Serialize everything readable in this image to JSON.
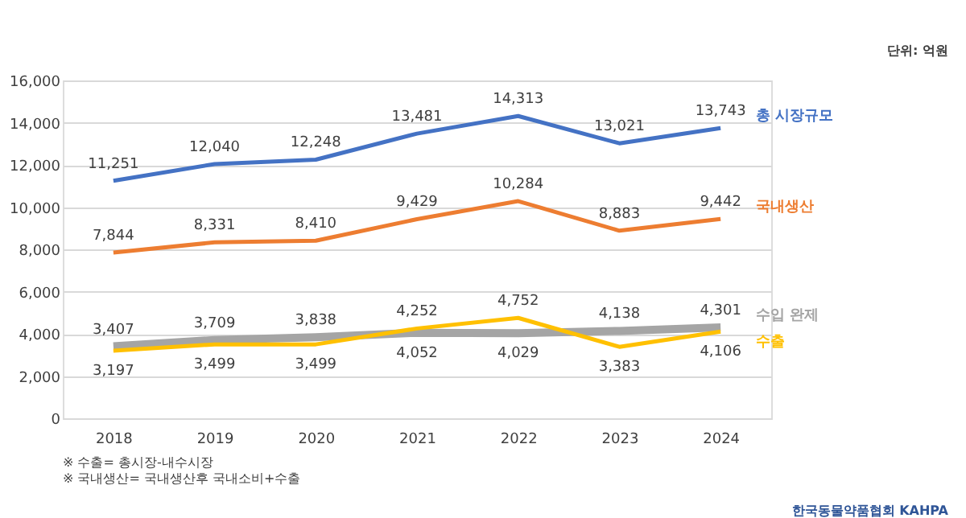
{
  "chart_data": {
    "type": "line",
    "categories": [
      "2018",
      "2019",
      "2020",
      "2021",
      "2022",
      "2023",
      "2024"
    ],
    "series": [
      {
        "name": "총 시장규모",
        "color": "#4472c4",
        "values": [
          11251,
          12040,
          12248,
          13481,
          14313,
          13021,
          13743
        ],
        "value_labels": [
          "11,251",
          "12,040",
          "12,248",
          "13,481",
          "14,313",
          "13,021",
          "13,743"
        ]
      },
      {
        "name": "국내생산",
        "color": "#ed7d31",
        "values": [
          7844,
          8331,
          8410,
          9429,
          10284,
          8883,
          9442
        ],
        "value_labels": [
          "7,844",
          "8,331",
          "8,410",
          "9,429",
          "10,284",
          "8,883",
          "9,442"
        ]
      },
      {
        "name": "수입 완제",
        "color": "#a5a5a5",
        "values": [
          3407,
          3709,
          3838,
          4052,
          4029,
          4138,
          4301
        ],
        "value_labels": [
          "3,407",
          "3,709",
          "3,838",
          "4,052",
          "4,029",
          "4,138",
          "4,301"
        ]
      },
      {
        "name": "수출",
        "color": "#ffc000",
        "values": [
          3197,
          3499,
          3499,
          4252,
          4752,
          3383,
          4106
        ],
        "value_labels": [
          "3,197",
          "3,499",
          "3,499",
          "4,252",
          "4,752",
          "3,383",
          "4,106"
        ]
      }
    ],
    "ylim": [
      0,
      16000
    ],
    "yticks": [
      {
        "value": 0,
        "label": "0"
      },
      {
        "value": 2000,
        "label": "2,000"
      },
      {
        "value": 4000,
        "label": "4,000"
      },
      {
        "value": 6000,
        "label": "6,000"
      },
      {
        "value": 8000,
        "label": "8,000"
      },
      {
        "value": 10000,
        "label": "10,000"
      },
      {
        "value": 12000,
        "label": "12,000"
      },
      {
        "value": 14000,
        "label": "14,000"
      },
      {
        "value": 16000,
        "label": "16,000"
      }
    ],
    "grid": "y",
    "marker": "none",
    "line_style": "solid",
    "annotations": [
      "단위: 억원",
      "※ 수출= 총시장-내수시장",
      "※ 국내생산= 국내생산후 국내소비+수출",
      "한국동물약품협회 KAHPA"
    ]
  }
}
